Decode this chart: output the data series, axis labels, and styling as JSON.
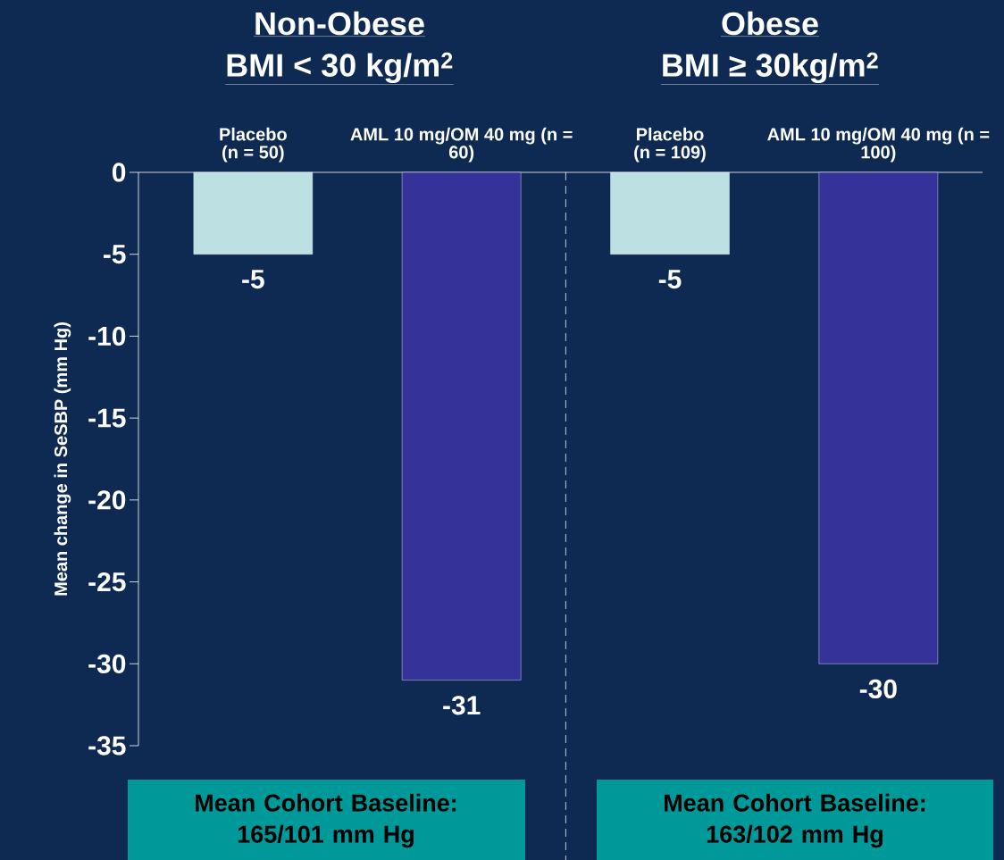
{
  "chart_data": {
    "type": "bar",
    "ylabel": "Mean change in SeSBP (mm Hg)",
    "categories": [
      "Placebo (n = 50)",
      "AML 10 mg/OM 40 mg (n = 60)",
      "Placebo (n = 109)",
      "AML 10 mg/OM 40 mg (n = 100)"
    ],
    "values": [
      -5,
      -31,
      -5,
      -30
    ],
    "colors": [
      "#bde0e2",
      "#35329a",
      "#bde0e2",
      "#35329a"
    ],
    "data_labels": true,
    "ylim": [
      -35,
      0
    ],
    "yticks": [
      0,
      -5,
      -10,
      -15,
      -20,
      -25,
      -30,
      -35
    ],
    "grid": false,
    "annotations": [
      "Non-Obese",
      "BMI < 30 kg/m$^{2}$",
      "Obese",
      "BMI ≥ 30kg/m$^{2}$",
      "Mean Cohort Baseline: 165/101 mm Hg",
      "Mean Cohort Baseline: 163/102 mm Hg"
    ]
  }
}
